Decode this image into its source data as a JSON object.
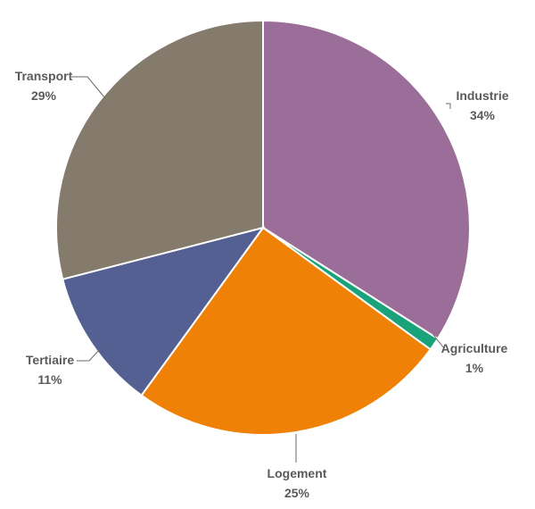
{
  "chart_data": {
    "type": "pie",
    "title": "",
    "start_angle_deg": 0,
    "direction": "clockwise",
    "slices": [
      {
        "label": "Industrie",
        "value": 34,
        "value_label": "34%",
        "color": "#9b6e9a"
      },
      {
        "label": "Agriculture",
        "value": 1,
        "value_label": "1%",
        "color": "#1aa37b"
      },
      {
        "label": "Logement",
        "value": 25,
        "value_label": "25%",
        "color": "#ef8106"
      },
      {
        "label": "Tertiaire",
        "value": 11,
        "value_label": "11%",
        "color": "#546092"
      },
      {
        "label": "Transport",
        "value": 29,
        "value_label": "29%",
        "color": "#857b6c"
      }
    ]
  }
}
